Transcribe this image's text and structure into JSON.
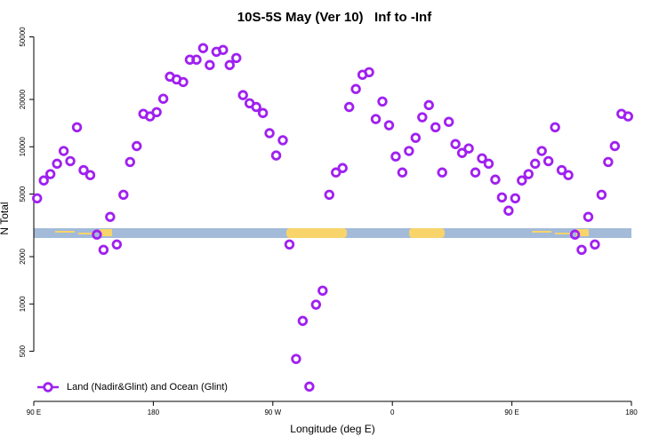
{
  "chart_data": {
    "type": "scatter",
    "title": "10S-5S May (Ver 10)   Inf to -Inf",
    "xlabel": "Longitude (deg E)",
    "ylabel": "N Total",
    "yscale": "log",
    "xlim": [
      90,
      540
    ],
    "ylim": [
      240,
      51000
    ],
    "xticks": [
      {
        "value": 90,
        "label": "90 E"
      },
      180,
      {
        "value": 270,
        "label": "90 W"
      },
      {
        "value": 360,
        "label": "0"
      },
      {
        "value": 450,
        "label": "90 E"
      },
      {
        "value": 540,
        "label": "180"
      }
    ],
    "yticks": [
      500,
      1000,
      2000,
      5000,
      10000,
      20000,
      50000
    ],
    "legend": "bottom-left",
    "series": [
      {
        "name": "Land (Nadir&Glint) and Ocean (Glint)",
        "color": "#a020f0",
        "x": [
          92.5,
          97.5,
          102.5,
          107.5,
          112.5,
          117.5,
          122.5,
          127.5,
          132.5,
          137.5,
          142.5,
          147.5,
          152.5,
          157.5,
          162.5,
          167.5,
          172.5,
          177.5,
          182.5,
          187.5,
          192.5,
          197.5,
          202.5,
          207.5,
          212.5,
          217.5,
          222.5,
          227.5,
          232.5,
          237.5,
          242.5,
          247.5,
          252.5,
          257.5,
          262.5,
          267.5,
          272.5,
          277.5,
          282.5,
          287.5,
          292.5,
          297.5,
          302.5,
          307.5,
          312.5,
          317.5,
          322.5,
          327.5,
          332.5,
          337.5,
          342.5,
          347.5,
          352.5,
          357.5,
          362.5,
          367.5,
          372.5,
          377.5,
          382.5,
          387.5,
          392.5,
          397.5,
          402.5,
          407.5,
          412.5,
          417.5,
          422.5,
          427.5,
          432.5,
          437.5,
          442.5,
          447.5,
          452.5,
          457.5,
          462.5,
          467.5,
          472.5,
          477.5,
          482.5,
          487.5,
          492.5,
          497.5,
          502.5,
          507.5,
          512.5,
          517.5,
          522.5,
          527.5,
          532.5,
          537.5
        ],
        "values": [
          4700,
          6100,
          6700,
          7800,
          9400,
          8100,
          13300,
          7100,
          6600,
          2760,
          2210,
          3580,
          2390,
          4950,
          8000,
          10100,
          16200,
          15600,
          16600,
          20200,
          27900,
          26800,
          25800,
          35800,
          35800,
          42400,
          33100,
          40200,
          41300,
          33100,
          36700,
          21300,
          18900,
          17900,
          16400,
          12200,
          8800,
          11000,
          2390,
          447,
          780,
          298,
          990,
          1215,
          4950,
          6860,
          7320,
          17900,
          23300,
          28700,
          29800,
          15000,
          19400,
          13700,
          8670,
          6860,
          9400,
          11400,
          15400,
          18400,
          13300,
          6860,
          14400,
          10400,
          9130,
          9750,
          6860,
          8440,
          7800,
          6180,
          4760,
          3920,
          4700,
          6100,
          6700,
          7800,
          9400,
          8100,
          13300,
          7100,
          6600,
          2760,
          2210,
          3580,
          2390,
          4950,
          8000,
          10100,
          16200,
          15600
        ]
      }
    ]
  }
}
